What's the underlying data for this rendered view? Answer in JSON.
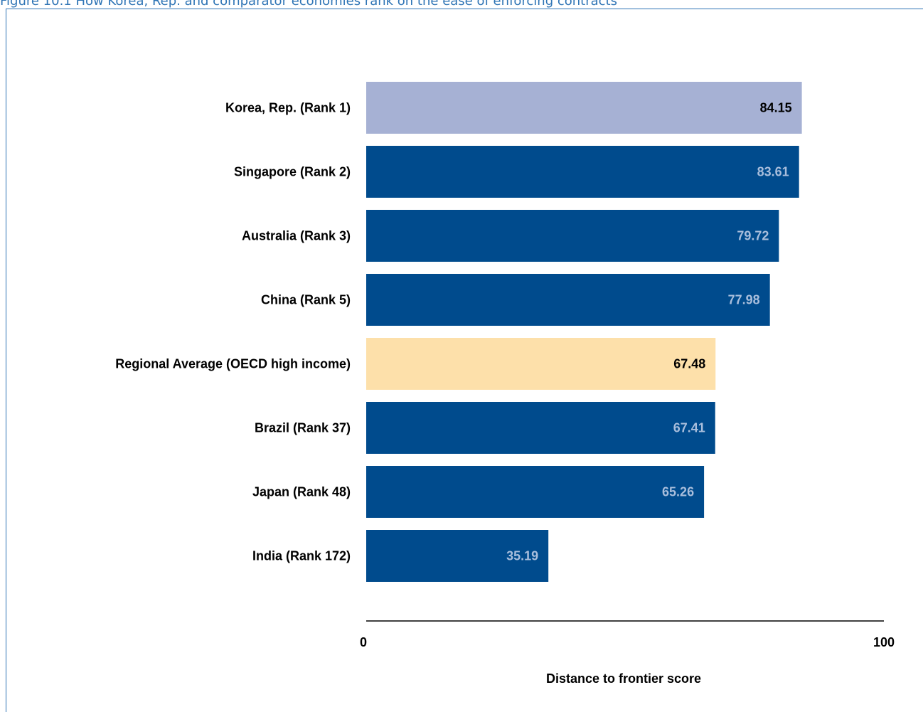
{
  "caption": "Figure 10.1 How Korea, Rep. and comparator economies rank on the ease of enforcing contracts",
  "chart_data": {
    "type": "bar",
    "orientation": "horizontal",
    "categories": [
      "Korea, Rep. (Rank 1)",
      "Singapore (Rank 2)",
      "Australia (Rank 3)",
      "China (Rank 5)",
      "Regional Average (OECD high income)",
      "Brazil (Rank 37)",
      "Japan (Rank 48)",
      "India (Rank 172)"
    ],
    "values": [
      84.15,
      83.61,
      79.72,
      77.98,
      67.48,
      67.41,
      65.26,
      35.19
    ],
    "value_labels": [
      "84.15",
      "83.61",
      "79.72",
      "77.98",
      "67.48",
      "67.41",
      "65.26",
      "35.19"
    ],
    "bar_colors": [
      "#a6b1d4",
      "#004b8d",
      "#004b8d",
      "#004b8d",
      "#fde0aa",
      "#004b8d",
      "#004b8d",
      "#004b8d"
    ],
    "label_colors": [
      "#000000",
      "#a9bedc",
      "#a9bedc",
      "#a9bedc",
      "#000000",
      "#a9bedc",
      "#a9bedc",
      "#a9bedc"
    ],
    "xlim": [
      0,
      100
    ],
    "xticks": [
      "0",
      "100"
    ],
    "xlabel": "Distance to frontier score",
    "axis_color": "#000000",
    "grid": false
  }
}
